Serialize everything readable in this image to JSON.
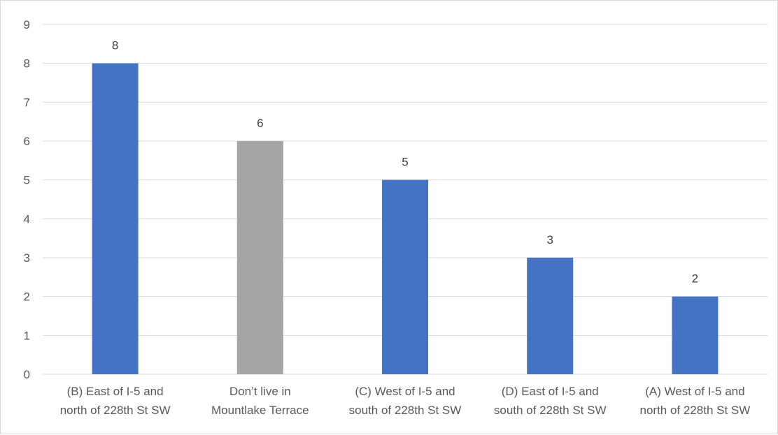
{
  "chart_data": {
    "type": "bar",
    "title": "",
    "xlabel": "",
    "ylabel": "",
    "ylim": [
      0,
      9
    ],
    "yticks": [
      0,
      1,
      2,
      3,
      4,
      5,
      6,
      7,
      8,
      9
    ],
    "grid": true,
    "legend": "none",
    "categories": [
      [
        "(B) East of I-5 and",
        "north of 228th St SW"
      ],
      [
        "Don’t live in",
        "Mountlake Terrace"
      ],
      [
        "(C) West of I-5 and",
        "south of 228th St SW"
      ],
      [
        "(D) East of I-5 and",
        "south of 228th St SW"
      ],
      [
        "(A) West of I-5 and",
        "north of 228th St SW"
      ]
    ],
    "values": [
      8,
      6,
      5,
      3,
      2
    ],
    "bar_colors": [
      "#4472c4",
      "#a5a5a5",
      "#4472c4",
      "#4472c4",
      "#4472c4"
    ],
    "data_labels": [
      "8",
      "6",
      "5",
      "3",
      "2"
    ]
  },
  "colors": {
    "grid": "#d9d9d9",
    "axis": "#d9d9d9"
  }
}
